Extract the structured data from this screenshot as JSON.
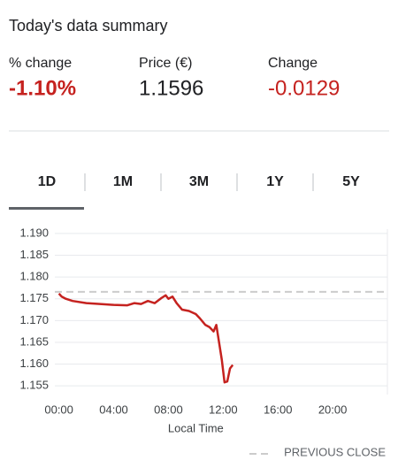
{
  "summary": {
    "title": "Today's data summary",
    "items": [
      {
        "label": "% change",
        "value": "-1.10%"
      },
      {
        "label": "Price (€)",
        "value": "1.1596"
      },
      {
        "label": "Change",
        "value": "-0.0129"
      }
    ]
  },
  "tabs": [
    "1D",
    "1M",
    "3M",
    "1Y",
    "5Y"
  ],
  "chart_data": {
    "type": "line",
    "x_label": "Local Time",
    "color": "#c5221f",
    "x": [
      0,
      0.2,
      0.5,
      1,
      2,
      3,
      4,
      5,
      5.5,
      6,
      6.5,
      7,
      7.5,
      7.8,
      8,
      8.3,
      8.6,
      9,
      9.5,
      10,
      10.3,
      10.7,
      11,
      11.3,
      11.5,
      11.7,
      11.9,
      12.1,
      12.3,
      12.5,
      12.7
    ],
    "values": [
      1.1762,
      1.1755,
      1.175,
      1.1745,
      1.174,
      1.1738,
      1.1736,
      1.1735,
      1.174,
      1.1738,
      1.1745,
      1.174,
      1.1752,
      1.1758,
      1.175,
      1.1755,
      1.174,
      1.1725,
      1.1722,
      1.1715,
      1.1705,
      1.169,
      1.1685,
      1.1675,
      1.169,
      1.165,
      1.161,
      1.1558,
      1.156,
      1.159,
      1.1598
    ],
    "xlim": [
      -0.3,
      24
    ],
    "xticks": [
      {
        "value": 0,
        "label": "00:00"
      },
      {
        "value": 4,
        "label": "04:00"
      },
      {
        "value": 8,
        "label": "08:00"
      },
      {
        "value": 12,
        "label": "12:00"
      },
      {
        "value": 16,
        "label": "16:00"
      },
      {
        "value": 20,
        "label": "20:00"
      }
    ],
    "ylim": [
      1.153,
      1.191
    ],
    "yticks": [
      {
        "value": 1.155,
        "label": "1.155"
      },
      {
        "value": 1.16,
        "label": "1.160"
      },
      {
        "value": 1.165,
        "label": "1.165"
      },
      {
        "value": 1.17,
        "label": "1.170"
      },
      {
        "value": 1.175,
        "label": "1.175"
      },
      {
        "value": 1.18,
        "label": "1.180"
      },
      {
        "value": 1.185,
        "label": "1.185"
      },
      {
        "value": 1.19,
        "label": "1.190"
      }
    ],
    "grid": true,
    "reference_lines": [
      {
        "name": "PREVIOUS CLOSE",
        "value": 1.1766,
        "color": "#cccccc",
        "dashed": true
      }
    ]
  }
}
